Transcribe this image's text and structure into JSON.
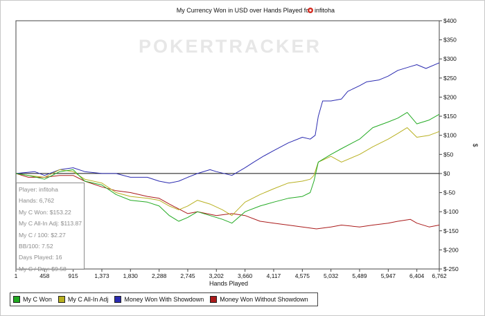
{
  "chart_data": {
    "type": "line",
    "title": "My Currency Won in USD over Hands Played for",
    "player_name": "infitoha",
    "watermark": "POKERTRACKER",
    "xlabel": "Hands Played",
    "ylabel": "$",
    "xlim": [
      1,
      6762
    ],
    "ylim": [
      -250,
      400
    ],
    "x_ticks": [
      "1",
      "458",
      "915",
      "1,373",
      "1,830",
      "2,288",
      "2,745",
      "3,202",
      "3,660",
      "4,117",
      "4,575",
      "5,032",
      "5,489",
      "5,947",
      "6,404",
      "6,762"
    ],
    "y_ticks": [
      "$400",
      "$350",
      "$300",
      "$250",
      "$200",
      "$150",
      "$100",
      "$50",
      "$0",
      "$-50",
      "$-100",
      "$-150",
      "$-200",
      "$-250"
    ],
    "y_tick_values": [
      400,
      350,
      300,
      250,
      200,
      150,
      100,
      50,
      0,
      -50,
      -100,
      -150,
      -200,
      -250
    ],
    "legend_position": "bottom-left",
    "series": [
      {
        "name": "My C Won",
        "color": "#22aa22",
        "points": [
          [
            1,
            0
          ],
          [
            200,
            -5
          ],
          [
            458,
            -15
          ],
          [
            700,
            5
          ],
          [
            915,
            10
          ],
          [
            1100,
            -20
          ],
          [
            1373,
            -30
          ],
          [
            1600,
            -55
          ],
          [
            1830,
            -70
          ],
          [
            2100,
            -75
          ],
          [
            2288,
            -85
          ],
          [
            2450,
            -110
          ],
          [
            2600,
            -125
          ],
          [
            2745,
            -115
          ],
          [
            2900,
            -100
          ],
          [
            3100,
            -110
          ],
          [
            3300,
            -120
          ],
          [
            3450,
            -130
          ],
          [
            3660,
            -100
          ],
          [
            3900,
            -85
          ],
          [
            4117,
            -75
          ],
          [
            4350,
            -65
          ],
          [
            4575,
            -60
          ],
          [
            4700,
            -50
          ],
          [
            4760,
            -20
          ],
          [
            4830,
            30
          ],
          [
            5032,
            50
          ],
          [
            5200,
            65
          ],
          [
            5489,
            90
          ],
          [
            5700,
            120
          ],
          [
            5947,
            135
          ],
          [
            6100,
            145
          ],
          [
            6250,
            160
          ],
          [
            6404,
            130
          ],
          [
            6600,
            140
          ],
          [
            6762,
            155
          ]
        ]
      },
      {
        "name": "My C All-In Adj",
        "color": "#b8b020",
        "points": [
          [
            1,
            0
          ],
          [
            200,
            -5
          ],
          [
            458,
            -10
          ],
          [
            700,
            10
          ],
          [
            915,
            5
          ],
          [
            1100,
            -15
          ],
          [
            1373,
            -25
          ],
          [
            1600,
            -50
          ],
          [
            1830,
            -60
          ],
          [
            2100,
            -65
          ],
          [
            2288,
            -70
          ],
          [
            2450,
            -85
          ],
          [
            2600,
            -95
          ],
          [
            2745,
            -85
          ],
          [
            2900,
            -70
          ],
          [
            3100,
            -80
          ],
          [
            3300,
            -95
          ],
          [
            3450,
            -110
          ],
          [
            3660,
            -75
          ],
          [
            3900,
            -55
          ],
          [
            4117,
            -40
          ],
          [
            4350,
            -25
          ],
          [
            4575,
            -20
          ],
          [
            4700,
            -15
          ],
          [
            4760,
            -5
          ],
          [
            4830,
            30
          ],
          [
            5032,
            45
          ],
          [
            5200,
            30
          ],
          [
            5489,
            50
          ],
          [
            5700,
            70
          ],
          [
            5947,
            90
          ],
          [
            6100,
            105
          ],
          [
            6250,
            120
          ],
          [
            6404,
            95
          ],
          [
            6600,
            100
          ],
          [
            6762,
            110
          ]
        ]
      },
      {
        "name": "Money Won With Showdown",
        "color": "#2a2ab0",
        "points": [
          [
            1,
            0
          ],
          [
            300,
            5
          ],
          [
            458,
            -5
          ],
          [
            700,
            10
          ],
          [
            915,
            15
          ],
          [
            1100,
            5
          ],
          [
            1373,
            0
          ],
          [
            1600,
            0
          ],
          [
            1830,
            -10
          ],
          [
            2100,
            -10
          ],
          [
            2288,
            -20
          ],
          [
            2450,
            -25
          ],
          [
            2600,
            -20
          ],
          [
            2745,
            -10
          ],
          [
            2900,
            0
          ],
          [
            3100,
            10
          ],
          [
            3202,
            5
          ],
          [
            3450,
            -5
          ],
          [
            3660,
            15
          ],
          [
            3800,
            30
          ],
          [
            3950,
            45
          ],
          [
            4117,
            60
          ],
          [
            4350,
            80
          ],
          [
            4575,
            95
          ],
          [
            4700,
            90
          ],
          [
            4780,
            100
          ],
          [
            4830,
            150
          ],
          [
            4900,
            190
          ],
          [
            5032,
            190
          ],
          [
            5200,
            195
          ],
          [
            5300,
            215
          ],
          [
            5489,
            230
          ],
          [
            5600,
            240
          ],
          [
            5800,
            245
          ],
          [
            5947,
            255
          ],
          [
            6100,
            270
          ],
          [
            6300,
            280
          ],
          [
            6404,
            285
          ],
          [
            6550,
            275
          ],
          [
            6762,
            290
          ]
        ]
      },
      {
        "name": "Money Won Without Showdown",
        "color": "#aa1a1a",
        "points": [
          [
            1,
            0
          ],
          [
            200,
            -10
          ],
          [
            458,
            -10
          ],
          [
            700,
            -5
          ],
          [
            915,
            -5
          ],
          [
            1100,
            -20
          ],
          [
            1373,
            -35
          ],
          [
            1600,
            -45
          ],
          [
            1830,
            -50
          ],
          [
            2100,
            -60
          ],
          [
            2288,
            -65
          ],
          [
            2450,
            -80
          ],
          [
            2745,
            -105
          ],
          [
            2900,
            -100
          ],
          [
            3202,
            -110
          ],
          [
            3450,
            -105
          ],
          [
            3660,
            -110
          ],
          [
            3900,
            -125
          ],
          [
            4117,
            -130
          ],
          [
            4350,
            -135
          ],
          [
            4575,
            -140
          ],
          [
            4800,
            -145
          ],
          [
            5032,
            -140
          ],
          [
            5200,
            -135
          ],
          [
            5489,
            -140
          ],
          [
            5700,
            -135
          ],
          [
            5947,
            -130
          ],
          [
            6100,
            -125
          ],
          [
            6300,
            -120
          ],
          [
            6404,
            -130
          ],
          [
            6600,
            -140
          ],
          [
            6762,
            -135
          ]
        ]
      }
    ]
  },
  "info_box": {
    "player": "Player: infitoha",
    "hands": "Hands: 6,762",
    "c_won": "My C Won: $153.22",
    "all_in_adj": "My C All-In Adj: $113.87",
    "c_per_100": "My C / 100: $2.27",
    "bb_per_100": "BB/100: 7.52",
    "days_played": "Days Played: 16",
    "c_per_day": "My C / Day: $9.58"
  }
}
